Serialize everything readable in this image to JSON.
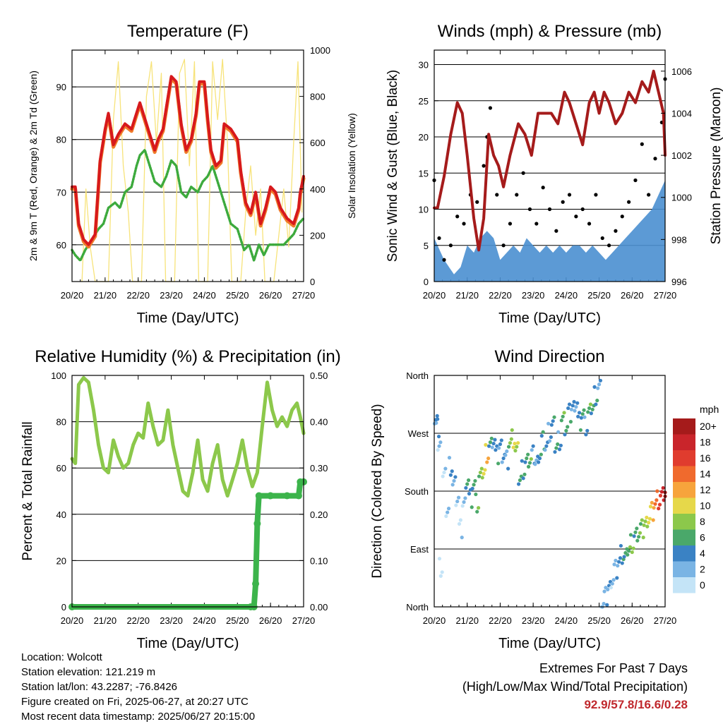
{
  "colors": {
    "temp_2m": "#d7191c",
    "temp_9m": "#f07b2b",
    "dewpoint": "#3daa3d",
    "solar": "#f7e37a",
    "wind": "#4a8fd0",
    "gust": "#000000",
    "pressure": "#a51b1b",
    "rh": "#8cc84b",
    "precip": "#3cb44b"
  },
  "x_ticks": [
    "20/20",
    "21/20",
    "22/20",
    "23/20",
    "24/20",
    "25/20",
    "26/20",
    "27/20"
  ],
  "chart_data": [
    {
      "id": "temperature",
      "type": "line",
      "title": "Temperature (F)",
      "xlabel": "Time (Day/UTC)",
      "ylabel": "2m & 9m T (Red, Orange) & 2m Td (Green)",
      "y2label": "Solar Insolation (Yellow)",
      "ylim": [
        53,
        97
      ],
      "y_ticks": [
        60,
        70,
        80,
        90
      ],
      "y2lim": [
        0,
        1000
      ],
      "y2_ticks": [
        0,
        200,
        400,
        600,
        800,
        1000
      ],
      "x_range_days": [
        0,
        7
      ],
      "grid": true,
      "series": [
        {
          "key": "temp_2m",
          "x": [
            0,
            0.1,
            0.2,
            0.35,
            0.5,
            0.7,
            0.85,
            1.0,
            1.1,
            1.25,
            1.4,
            1.6,
            1.8,
            1.9,
            2.05,
            2.2,
            2.35,
            2.5,
            2.6,
            2.75,
            2.85,
            3.0,
            3.15,
            3.3,
            3.45,
            3.6,
            3.75,
            3.85,
            4.0,
            4.1,
            4.2,
            4.35,
            4.5,
            4.6,
            4.8,
            5.0,
            5.1,
            5.25,
            5.4,
            5.55,
            5.7,
            5.85,
            6.0,
            6.15,
            6.3,
            6.5,
            6.7,
            6.85,
            6.9,
            7.0
          ],
          "y": [
            71,
            71,
            64,
            61,
            60,
            62,
            76,
            82,
            85,
            79,
            81,
            83,
            82,
            84,
            87,
            84,
            81,
            78,
            80,
            82,
            86,
            92,
            91,
            83,
            78,
            80,
            85,
            91,
            91,
            84,
            78,
            75,
            76,
            83,
            82,
            80,
            74,
            68,
            66,
            70,
            64,
            67,
            71,
            70,
            67,
            65,
            64,
            67,
            70,
            73
          ]
        },
        {
          "key": "dewpoint",
          "x": [
            0,
            0.1,
            0.25,
            0.4,
            0.6,
            0.8,
            0.95,
            1.1,
            1.3,
            1.45,
            1.6,
            1.8,
            1.95,
            2.05,
            2.2,
            2.35,
            2.5,
            2.7,
            2.85,
            3.0,
            3.15,
            3.3,
            3.45,
            3.6,
            3.8,
            3.95,
            4.1,
            4.25,
            4.4,
            4.6,
            4.8,
            5.0,
            5.1,
            5.2,
            5.35,
            5.5,
            5.65,
            5.8,
            5.95,
            6.1,
            6.25,
            6.4,
            6.55,
            6.7,
            6.85,
            7.0
          ],
          "y": [
            59,
            58,
            57,
            59,
            61,
            63,
            64,
            67,
            68,
            67,
            70,
            71,
            75,
            77,
            78,
            75,
            72,
            71,
            73,
            76,
            75,
            70,
            69,
            71,
            70,
            72,
            73,
            75,
            72,
            68,
            64,
            63,
            61,
            59,
            60,
            57,
            60,
            58,
            60,
            60,
            60,
            60,
            61,
            62,
            64,
            65
          ]
        },
        {
          "key": "solar",
          "x": [
            0.3,
            0.42,
            0.55,
            0.7,
            1.1,
            1.25,
            1.4,
            1.55,
            1.7,
            1.83,
            2.1,
            2.25,
            2.4,
            2.55,
            2.7,
            2.83,
            3.1,
            3.25,
            3.4,
            3.55,
            3.7,
            3.83,
            4.1,
            4.25,
            4.4,
            4.55,
            4.7,
            4.83,
            5.1,
            5.25,
            5.4,
            5.55,
            5.7,
            5.83,
            6.1,
            6.25,
            6.4,
            6.55,
            6.7,
            6.83,
            6.95
          ],
          "y": [
            0,
            400,
            150,
            0,
            0,
            700,
            950,
            500,
            300,
            0,
            0,
            800,
            950,
            600,
            900,
            0,
            0,
            900,
            960,
            500,
            950,
            0,
            0,
            950,
            700,
            960,
            600,
            0,
            0,
            300,
            500,
            200,
            400,
            0,
            0,
            200,
            400,
            150,
            600,
            950,
            300
          ]
        }
      ]
    },
    {
      "id": "winds",
      "type": "scatter",
      "title": "Winds (mph) & Pressure (mb)",
      "xlabel": "Time (Day/UTC)",
      "ylabel": "Sonic Wind & Gust (Blue, Black)",
      "y2label": "Station Pressure (Maroon)",
      "ylim": [
        0,
        32
      ],
      "y_ticks": [
        0,
        5,
        10,
        15,
        20,
        25,
        30
      ],
      "y2lim": [
        996,
        1007
      ],
      "y2_ticks": [
        996,
        998,
        1000,
        1002,
        1004,
        1006
      ],
      "x_range_days": [
        0,
        7
      ],
      "grid": true,
      "series": [
        {
          "key": "pressure",
          "x": [
            0,
            0.1,
            0.3,
            0.5,
            0.7,
            0.85,
            1.0,
            1.2,
            1.35,
            1.5,
            1.65,
            1.8,
            1.95,
            2.1,
            2.3,
            2.55,
            2.75,
            2.95,
            3.15,
            3.35,
            3.55,
            3.75,
            3.95,
            4.1,
            4.3,
            4.5,
            4.7,
            4.85,
            5.0,
            5.15,
            5.3,
            5.5,
            5.7,
            5.9,
            6.1,
            6.3,
            6.5,
            6.65,
            6.8,
            6.95,
            7.0
          ],
          "y": [
            999.5,
            999.5,
            1001,
            1003,
            1004.5,
            1004,
            1002,
            999,
            997.5,
            999,
            1003,
            1002,
            1001.5,
            1000.5,
            1002,
            1003.5,
            1003,
            1002,
            1004,
            1004,
            1004,
            1003.5,
            1005,
            1004.5,
            1003.5,
            1002.5,
            1004.5,
            1005,
            1004,
            1005,
            1004.5,
            1003.5,
            1004,
            1005,
            1004.5,
            1005.5,
            1005,
            1006,
            1005,
            1004,
            1002
          ]
        },
        {
          "key": "wind",
          "x": [
            0,
            0.3,
            0.6,
            0.8,
            1.0,
            1.2,
            1.4,
            1.6,
            1.8,
            2.0,
            2.2,
            2.4,
            2.6,
            2.8,
            3.0,
            3.2,
            3.4,
            3.6,
            3.8,
            4.0,
            4.2,
            4.4,
            4.6,
            4.8,
            5.0,
            5.2,
            5.4,
            5.6,
            5.8,
            6.0,
            6.2,
            6.4,
            6.6,
            6.8,
            7.0
          ],
          "y": [
            6,
            3,
            1,
            2,
            5,
            4,
            6,
            7,
            6,
            3,
            4,
            5,
            4,
            6,
            5,
            4,
            5,
            4,
            5,
            4,
            5,
            5,
            4,
            5,
            4,
            3,
            4,
            5,
            6,
            7,
            8,
            9,
            10,
            12,
            14
          ]
        },
        {
          "key": "gust",
          "x": [
            0,
            0.15,
            0.3,
            0.5,
            0.7,
            0.9,
            1.1,
            1.3,
            1.5,
            1.6,
            1.7,
            1.9,
            2.1,
            2.3,
            2.5,
            2.7,
            2.9,
            3.1,
            3.3,
            3.5,
            3.7,
            3.9,
            4.1,
            4.3,
            4.5,
            4.7,
            4.9,
            5.1,
            5.3,
            5.5,
            5.7,
            5.9,
            6.1,
            6.3,
            6.5,
            6.7,
            6.9,
            7.0
          ],
          "y": [
            14,
            6,
            3,
            5,
            9,
            8,
            12,
            11,
            16,
            20,
            24,
            12,
            5,
            8,
            12,
            15,
            10,
            8,
            13,
            10,
            7,
            11,
            12,
            9,
            10,
            8,
            12,
            6,
            5,
            7,
            9,
            11,
            14,
            19,
            12,
            17,
            22,
            28
          ]
        }
      ]
    },
    {
      "id": "rh_precip",
      "type": "line",
      "title": "Relative Humidity (%) & Precipitation (in)",
      "xlabel": "Time (Day/UTC)",
      "ylabel": "Percent & Total Rainfall",
      "ylim": [
        0,
        100
      ],
      "y_ticks": [
        0,
        20,
        40,
        60,
        80,
        100
      ],
      "y2lim": [
        0,
        0.5
      ],
      "y2_ticks": [
        "0.00",
        "0.10",
        "0.20",
        "0.30",
        "0.40",
        "0.50"
      ],
      "x_range_days": [
        0,
        7
      ],
      "grid": true,
      "series": [
        {
          "key": "rh",
          "x": [
            0,
            0.1,
            0.2,
            0.35,
            0.5,
            0.65,
            0.8,
            0.95,
            1.1,
            1.25,
            1.4,
            1.55,
            1.7,
            1.85,
            2.0,
            2.15,
            2.3,
            2.45,
            2.6,
            2.75,
            2.9,
            3.05,
            3.2,
            3.35,
            3.5,
            3.65,
            3.8,
            3.95,
            4.1,
            4.25,
            4.4,
            4.55,
            4.7,
            4.85,
            5.0,
            5.15,
            5.3,
            5.45,
            5.6,
            5.75,
            5.9,
            6.05,
            6.2,
            6.35,
            6.5,
            6.65,
            6.8,
            6.9,
            7.0
          ],
          "y": [
            64,
            62,
            96,
            99,
            97,
            85,
            70,
            60,
            58,
            72,
            65,
            60,
            62,
            70,
            75,
            73,
            88,
            78,
            70,
            72,
            85,
            70,
            60,
            50,
            48,
            58,
            72,
            55,
            50,
            62,
            70,
            55,
            48,
            55,
            62,
            72,
            60,
            52,
            58,
            78,
            97,
            85,
            78,
            82,
            78,
            85,
            88,
            82,
            75
          ]
        },
        {
          "key": "precip",
          "x": [
            0,
            5.4,
            5.5,
            5.55,
            5.6,
            5.65,
            6.0,
            6.5,
            6.85,
            6.9,
            7.0
          ],
          "y": [
            0,
            0,
            0,
            0.05,
            0.18,
            0.24,
            0.24,
            0.24,
            0.24,
            0.27,
            0.27
          ]
        }
      ]
    },
    {
      "id": "wind_direction",
      "type": "scatter",
      "title": "Wind Direction",
      "xlabel": "Time (Day/UTC)",
      "ylabel": "Direction (Colored By Speed)",
      "y_ticks": [
        "North",
        "East",
        "South",
        "West",
        "North"
      ],
      "ylim": [
        0,
        360
      ],
      "x_range_days": [
        0,
        7
      ],
      "grid": true,
      "colorbar": {
        "unit": "mph",
        "labels": [
          "20+",
          "18",
          "16",
          "14",
          "12",
          "10",
          "8",
          "6",
          "4",
          "2",
          "0"
        ],
        "colors": [
          "#a51b1b",
          "#c9252b",
          "#e03c2e",
          "#f06a2d",
          "#f7a43c",
          "#e6d84a",
          "#8cc84b",
          "#4aa86a",
          "#3a82c4",
          "#7ab4e4",
          "#c4e4f7"
        ]
      },
      "series": [
        {
          "key": "direction",
          "x": [
            0.05,
            0.1,
            0.15,
            0.2,
            0.3,
            0.4,
            0.5,
            0.6,
            0.7,
            0.8,
            0.9,
            1.0,
            1.1,
            1.2,
            1.3,
            1.4,
            1.5,
            1.6,
            1.7,
            1.8,
            1.9,
            2.0,
            2.1,
            2.2,
            2.3,
            2.4,
            2.5,
            2.6,
            2.7,
            2.8,
            2.9,
            3.0,
            3.1,
            3.2,
            3.3,
            3.4,
            3.5,
            3.6,
            3.7,
            3.8,
            3.9,
            4.0,
            4.1,
            4.2,
            4.3,
            4.4,
            4.5,
            4.6,
            4.7,
            4.8,
            4.9,
            5.0,
            5.1,
            5.2,
            5.3,
            5.4,
            5.5,
            5.6,
            5.7,
            5.8,
            5.9,
            6.0,
            6.1,
            6.2,
            6.3,
            6.4,
            6.5,
            6.6,
            6.7,
            6.8,
            6.9,
            7.0
          ],
          "y": [
            300,
            280,
            250,
            60,
            200,
            150,
            220,
            190,
            170,
            120,
            160,
            200,
            170,
            190,
            160,
            200,
            210,
            240,
            250,
            260,
            235,
            250,
            240,
            230,
            255,
            260,
            240,
            200,
            215,
            225,
            230,
            235,
            225,
            240,
            260,
            250,
            270,
            280,
            250,
            260,
            290,
            280,
            300,
            310,
            320,
            290,
            300,
            280,
            300,
            310,
            330,
            340,
            5,
            15,
            30,
            45,
            60,
            70,
            80,
            75,
            90,
            100,
            110,
            115,
            120,
            130,
            140,
            150,
            160,
            165,
            170,
            175
          ],
          "s": [
            4,
            4,
            2,
            0,
            1,
            2,
            4,
            3,
            2,
            1,
            2,
            6,
            5,
            6,
            7,
            8,
            10,
            12,
            6,
            4,
            5,
            4,
            4,
            3,
            8,
            10,
            9,
            6,
            5,
            6,
            7,
            4,
            3,
            5,
            6,
            4,
            3,
            5,
            6,
            4,
            7,
            6,
            5,
            4,
            3,
            5,
            6,
            4,
            7,
            6,
            5,
            3,
            2,
            3,
            4,
            2,
            3,
            4,
            5,
            6,
            7,
            8,
            6,
            7,
            8,
            9,
            10,
            12,
            14,
            16,
            18,
            20
          ]
        }
      ]
    }
  ],
  "info": {
    "location": "Location: Wolcott",
    "elevation": "Station elevation: 121.219 m",
    "latlon": "Station lat/lon: 43.2287; -76.8426",
    "created": "Figure created on Fri, 2025-06-27, at 20:27 UTC",
    "recent": "Most recent data timestamp: 2025/06/27 20:15:00"
  },
  "extremes": {
    "line1": "Extremes For Past 7 Days",
    "line2": "(High/Low/Max Wind/Total Precipitation)",
    "values": "92.9/57.8/16.6/0.28"
  }
}
